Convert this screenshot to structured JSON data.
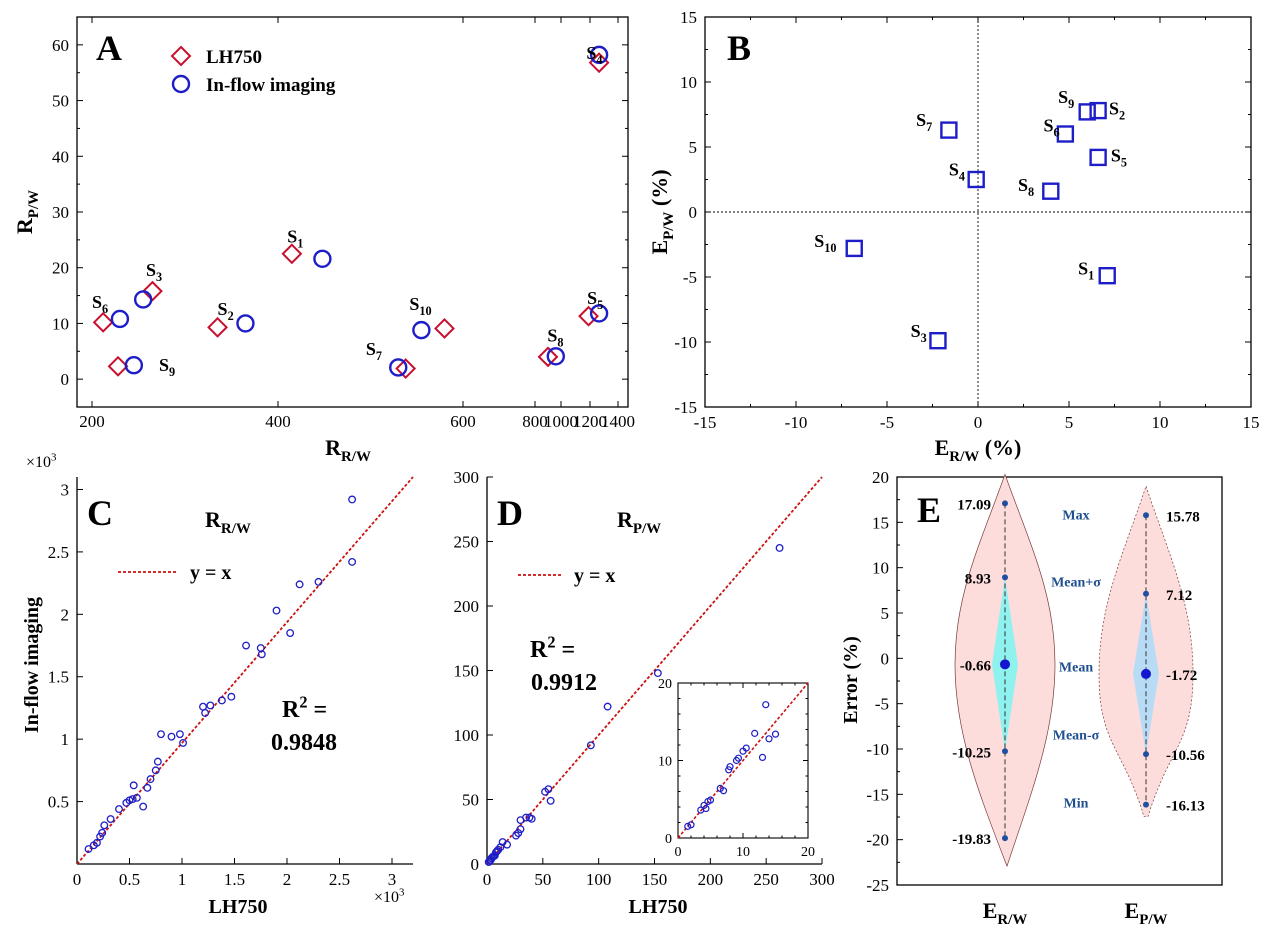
{
  "chart_data": [
    {
      "id": "A",
      "type": "scatter",
      "panel_letter": "A",
      "xlabel": {
        "main": "R",
        "sub": "R/W"
      },
      "ylabel": {
        "main": "R",
        "sub": "P/W"
      },
      "xlim": [
        190,
        1400
      ],
      "ylim": [
        -5,
        65
      ],
      "x_axis_scale": "custom (compressed beyond 600)",
      "xticks": [
        {
          "v": 200,
          "label": "200"
        },
        {
          "v": 400,
          "label": "400"
        },
        {
          "v": 600,
          "label": "600"
        },
        {
          "v": 800,
          "label": "800"
        },
        {
          "v": 1000,
          "label": "1000"
        },
        {
          "v": 1200,
          "label": "1200"
        },
        {
          "v": 1400,
          "label": "1400"
        }
      ],
      "yticks": [
        0,
        10,
        20,
        30,
        40,
        50,
        60
      ],
      "legend": {
        "position": "top-left",
        "entries": [
          "LH750",
          "In-flow imaging"
        ]
      },
      "series": [
        {
          "name": "LH750",
          "marker": "diamond",
          "color": "#c8102e",
          "points": [
            [
              415,
              22.5
            ],
            [
              335,
              9.3
            ],
            [
              265,
              15.8
            ],
            [
              1265,
              56.8
            ],
            [
              1190,
              11.3
            ],
            [
              212,
              10.2
            ],
            [
              538,
              1.9
            ],
            [
              900,
              4.0
            ],
            [
              228,
              2.3
            ],
            [
              580,
              9.1
            ]
          ]
        },
        {
          "name": "In-flow imaging",
          "marker": "circle",
          "color": "#1e1ec8",
          "points": [
            [
              448,
              21.6
            ],
            [
              365,
              10.0
            ],
            [
              255,
              14.3
            ],
            [
              1265,
              58.2
            ],
            [
              1265,
              11.8
            ],
            [
              230,
              10.8
            ],
            [
              530,
              2.1
            ],
            [
              960,
              4.1
            ],
            [
              245,
              2.5
            ],
            [
              555,
              8.8
            ]
          ]
        }
      ],
      "annotations": [
        {
          "base": "S",
          "sub": "1",
          "x": 410,
          "y": 24.5
        },
        {
          "base": "S",
          "sub": "2",
          "x": 335,
          "y": 11.5
        },
        {
          "base": "S",
          "sub": "3",
          "x": 258,
          "y": 18.5
        },
        {
          "base": "S",
          "sub": "4",
          "x": 1175,
          "y": 57.5
        },
        {
          "base": "S",
          "sub": "5",
          "x": 1180,
          "y": 13.5
        },
        {
          "base": "S",
          "sub": "6",
          "x": 200,
          "y": 12.8
        },
        {
          "base": "S",
          "sub": "7",
          "x": 495,
          "y": 4.3
        },
        {
          "base": "S",
          "sub": "8",
          "x": 895,
          "y": 6.8
        },
        {
          "base": "S",
          "sub": "9",
          "x": 272,
          "y": 1.5
        },
        {
          "base": "S",
          "sub": "10",
          "x": 542,
          "y": 12.4
        }
      ]
    },
    {
      "id": "B",
      "type": "scatter",
      "panel_letter": "B",
      "xlabel": {
        "main": "E",
        "sub": "R/W",
        "tail": " (%)"
      },
      "ylabel": {
        "main": "E",
        "sub": "P/W",
        "tail": " (%)"
      },
      "xlim": [
        -15,
        15
      ],
      "ylim": [
        -15,
        15
      ],
      "xticks": [
        -15,
        -10,
        -5,
        0,
        5,
        10,
        15
      ],
      "yticks": [
        -15,
        -10,
        -5,
        0,
        5,
        10,
        15
      ],
      "zero_lines": true,
      "series": [
        {
          "name": "",
          "marker": "square",
          "color": "#1e1ec8",
          "points": [
            [
              7.1,
              -4.9
            ],
            [
              6.6,
              7.8
            ],
            [
              -2.2,
              -9.9
            ],
            [
              -0.1,
              2.5
            ],
            [
              6.6,
              4.2
            ],
            [
              4.8,
              6.0
            ],
            [
              -1.6,
              6.3
            ],
            [
              4.0,
              1.6
            ],
            [
              6.0,
              7.7
            ],
            [
              -6.8,
              -2.8
            ]
          ]
        }
      ],
      "annotations": [
        {
          "base": "S",
          "sub": "1",
          "x": 5.5,
          "y": -4.8
        },
        {
          "base": "S",
          "sub": "2",
          "x": 7.2,
          "y": 7.5
        },
        {
          "base": "S",
          "sub": "3",
          "x": -3.7,
          "y": -9.6
        },
        {
          "base": "S",
          "sub": "4",
          "x": -1.6,
          "y": 2.8
        },
        {
          "base": "S",
          "sub": "5",
          "x": 7.3,
          "y": 3.9
        },
        {
          "base": "S",
          "sub": "6",
          "x": 3.6,
          "y": 6.2
        },
        {
          "base": "S",
          "sub": "7",
          "x": -3.4,
          "y": 6.6
        },
        {
          "base": "S",
          "sub": "8",
          "x": 2.2,
          "y": 1.6
        },
        {
          "base": "S",
          "sub": "9",
          "x": 4.4,
          "y": 8.4
        },
        {
          "base": "S",
          "sub": "10",
          "x": -9.0,
          "y": -2.7
        }
      ]
    },
    {
      "id": "C",
      "type": "scatter",
      "panel_letter": "C",
      "title": {
        "main": "R",
        "sub": "R/W"
      },
      "xlabel": "LH750",
      "ylabel": "In-flow imaging",
      "xlim": [
        0,
        3.2
      ],
      "ylim": [
        0,
        3.1
      ],
      "xticks": [
        0,
        0.5,
        1,
        1.5,
        2,
        2.5,
        3
      ],
      "yticks": [
        0,
        0.5,
        1,
        1.5,
        2,
        2.5,
        3
      ],
      "xtick_labels": [
        "0",
        "0.5",
        "1",
        "1.5",
        "2",
        "2.5",
        "3"
      ],
      "ytick_labels": [
        "",
        "0.5",
        "1",
        "1.5",
        "2",
        "2.5",
        "3"
      ],
      "multiplier": {
        "base": "×10",
        "exp": "3"
      },
      "legend": {
        "position": "top-left",
        "entries": [
          "y = x"
        ]
      },
      "r2": {
        "lead": "R",
        "sup": "2",
        "tail": " =",
        "value": "0.9848"
      },
      "series": [
        {
          "name": "",
          "marker": "circle-small",
          "color": "#1e1ec8",
          "points": [
            [
              0.11,
              0.12
            ],
            [
              0.16,
              0.15
            ],
            [
              0.19,
              0.17
            ],
            [
              0.22,
              0.22
            ],
            [
              0.24,
              0.25
            ],
            [
              0.26,
              0.31
            ],
            [
              0.32,
              0.36
            ],
            [
              0.4,
              0.44
            ],
            [
              0.47,
              0.49
            ],
            [
              0.5,
              0.51
            ],
            [
              0.53,
              0.52
            ],
            [
              0.54,
              0.63
            ],
            [
              0.57,
              0.53
            ],
            [
              0.63,
              0.46
            ],
            [
              0.67,
              0.61
            ],
            [
              0.7,
              0.68
            ],
            [
              0.75,
              0.75
            ],
            [
              0.77,
              0.82
            ],
            [
              0.8,
              1.04
            ],
            [
              0.9,
              1.02
            ],
            [
              0.98,
              1.04
            ],
            [
              1.01,
              0.97
            ],
            [
              1.2,
              1.26
            ],
            [
              1.22,
              1.21
            ],
            [
              1.27,
              1.27
            ],
            [
              1.38,
              1.31
            ],
            [
              1.47,
              1.34
            ],
            [
              1.61,
              1.75
            ],
            [
              1.75,
              1.73
            ],
            [
              1.76,
              1.68
            ],
            [
              1.9,
              2.03
            ],
            [
              2.03,
              1.85
            ],
            [
              2.12,
              2.24
            ],
            [
              2.3,
              2.26
            ],
            [
              2.62,
              2.92
            ],
            [
              2.62,
              2.42
            ]
          ]
        }
      ],
      "fit_line": {
        "name": "y = x",
        "color": "#cc1111",
        "slope": 1
      }
    },
    {
      "id": "D",
      "type": "scatter",
      "panel_letter": "D",
      "title": {
        "main": "R",
        "sub": "P/W"
      },
      "xlabel": "LH750",
      "ylabel": "",
      "xlim": [
        0,
        300
      ],
      "ylim": [
        0,
        300
      ],
      "xticks": [
        0,
        50,
        100,
        150,
        200,
        250,
        300
      ],
      "yticks": [
        0,
        50,
        100,
        150,
        200,
        250,
        300
      ],
      "legend": {
        "position": "top-left",
        "entries": [
          "y = x"
        ]
      },
      "r2": {
        "lead": "R",
        "sup": "2",
        "tail": " =",
        "value": "0.9912"
      },
      "series": [
        {
          "name": "",
          "marker": "circle-small",
          "color": "#1e1ec8",
          "points": [
            [
              1.5,
              1.5
            ],
            [
              2.5,
              2.5
            ],
            [
              3.5,
              3.3
            ],
            [
              4,
              4.5
            ],
            [
              5,
              5.5
            ],
            [
              6,
              6
            ],
            [
              7,
              6.5
            ],
            [
              8,
              9
            ],
            [
              9,
              10
            ],
            [
              10,
              11
            ],
            [
              12,
              13
            ],
            [
              14,
              17
            ],
            [
              18,
              15
            ],
            [
              26,
              22
            ],
            [
              28,
              24
            ],
            [
              30,
              27
            ],
            [
              30,
              34
            ],
            [
              35,
              36
            ],
            [
              38,
              36
            ],
            [
              40,
              35
            ],
            [
              52,
              56
            ],
            [
              55,
              58
            ],
            [
              57,
              49
            ],
            [
              93,
              92
            ],
            [
              108,
              122
            ],
            [
              153,
              148
            ],
            [
              262,
              245
            ]
          ]
        }
      ],
      "fit_line": {
        "name": "y = x",
        "color": "#cc1111",
        "slope": 1
      },
      "inset": {
        "xlim": [
          0,
          20
        ],
        "ylim": [
          0,
          20
        ],
        "xticks": [
          0,
          10,
          20
        ],
        "yticks": [
          0,
          10,
          20
        ],
        "points": [
          [
            1.5,
            1.5
          ],
          [
            2,
            1.7
          ],
          [
            3.5,
            3.6
          ],
          [
            4,
            4.2
          ],
          [
            4.3,
            3.8
          ],
          [
            4.6,
            4.7
          ],
          [
            5,
            4.9
          ],
          [
            6.5,
            6.4
          ],
          [
            7,
            6.1
          ],
          [
            7.8,
            8.8
          ],
          [
            8,
            9.2
          ],
          [
            9,
            10
          ],
          [
            9.3,
            10.3
          ],
          [
            10,
            11.2
          ],
          [
            10.5,
            11.6
          ],
          [
            11.8,
            13.5
          ],
          [
            13,
            10.4
          ],
          [
            13.5,
            17.2
          ],
          [
            14,
            12.8
          ],
          [
            15,
            13.4
          ]
        ]
      }
    },
    {
      "id": "E",
      "type": "violin",
      "panel_letter": "E",
      "ylabel": "Error (%)",
      "ylim": [
        -25,
        20
      ],
      "yticks": [
        -25,
        -20,
        -15,
        -10,
        -5,
        0,
        5,
        10,
        15,
        20
      ],
      "categories": [
        {
          "main": "E",
          "sub": "R/W"
        },
        {
          "main": "E",
          "sub": "P/W"
        }
      ],
      "stat_labels": [
        {
          "text": "Max",
          "y": 16.0
        },
        {
          "text": "Mean+σ",
          "y": 8.6
        },
        {
          "text": "Mean",
          "y": -0.8
        },
        {
          "text": "Mean-σ",
          "y": -8.3
        },
        {
          "text": "Min",
          "y": -15.8
        }
      ],
      "series": [
        {
          "name": "E_R/W",
          "body_color": "#fddcdc",
          "box_color": "#8ff2ef",
          "max": 17.09,
          "mean_plus_sigma": 8.93,
          "mean": -0.66,
          "mean_minus_sigma": -10.25,
          "min": -19.83,
          "labels": [
            "17.09",
            "8.93",
            "-0.66",
            "-10.25",
            "-19.83"
          ]
        },
        {
          "name": "E_P/W",
          "body_color": "#fddcdc",
          "box_color": "#b8dcf5",
          "max": 15.78,
          "mean_plus_sigma": 7.12,
          "mean": -1.72,
          "mean_minus_sigma": -10.56,
          "min": -16.13,
          "labels": [
            "15.78",
            "7.12",
            "-1.72",
            "-10.56",
            "-16.13"
          ]
        }
      ]
    }
  ]
}
